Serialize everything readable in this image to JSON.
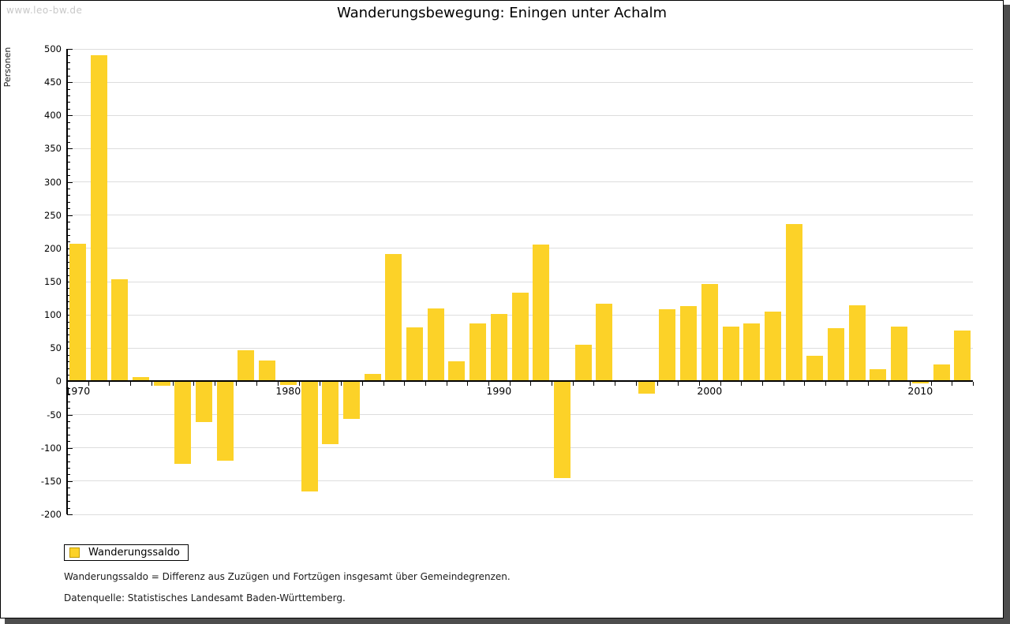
{
  "watermark": "www.leo-bw.de",
  "colors": {
    "bar": "#FCD228",
    "swatch_border": "#C09A00",
    "grid": "#DDDDDD",
    "axis": "#000000",
    "shadow": "#4D4D4D",
    "watermark": "#C8C8C8"
  },
  "footnotes": {
    "definition": "Wanderungssaldo = Differenz aus Zuzügen und Fortzügen insgesamt über Gemeindegrenzen.",
    "source": "Datenquelle: Statistisches Landesamt Baden-Württemberg."
  },
  "chart_data": {
    "type": "bar",
    "title": "Wanderungsbewegung: Eningen unter Achalm",
    "xlabel": "",
    "ylabel": "Personen",
    "ylim": [
      -200,
      500
    ],
    "ytick_step": 50,
    "ytick_minor_step": 10,
    "grid": true,
    "legend_position": "bottom-left",
    "xticks": [
      1970,
      1980,
      1990,
      2000,
      2010
    ],
    "categories": [
      1970,
      1971,
      1972,
      1973,
      1974,
      1975,
      1976,
      1977,
      1978,
      1979,
      1980,
      1981,
      1982,
      1983,
      1984,
      1985,
      1986,
      1987,
      1988,
      1989,
      1990,
      1991,
      1992,
      1993,
      1994,
      1995,
      1996,
      1997,
      1998,
      1999,
      2000,
      2001,
      2002,
      2003,
      2004,
      2005,
      2006,
      2007,
      2008,
      2009,
      2010,
      2011,
      2012
    ],
    "series": [
      {
        "name": "Wanderungssaldo",
        "values": [
          207,
          490,
          154,
          6,
          -7,
          -124,
          -61,
          -120,
          47,
          32,
          -5,
          -166,
          -94,
          -57,
          11,
          192,
          81,
          110,
          30,
          87,
          101,
          134,
          206,
          -145,
          55,
          117,
          0,
          -18,
          108,
          113,
          147,
          82,
          87,
          105,
          237,
          38,
          80,
          114,
          18,
          82,
          -3,
          26,
          76
        ]
      }
    ]
  }
}
